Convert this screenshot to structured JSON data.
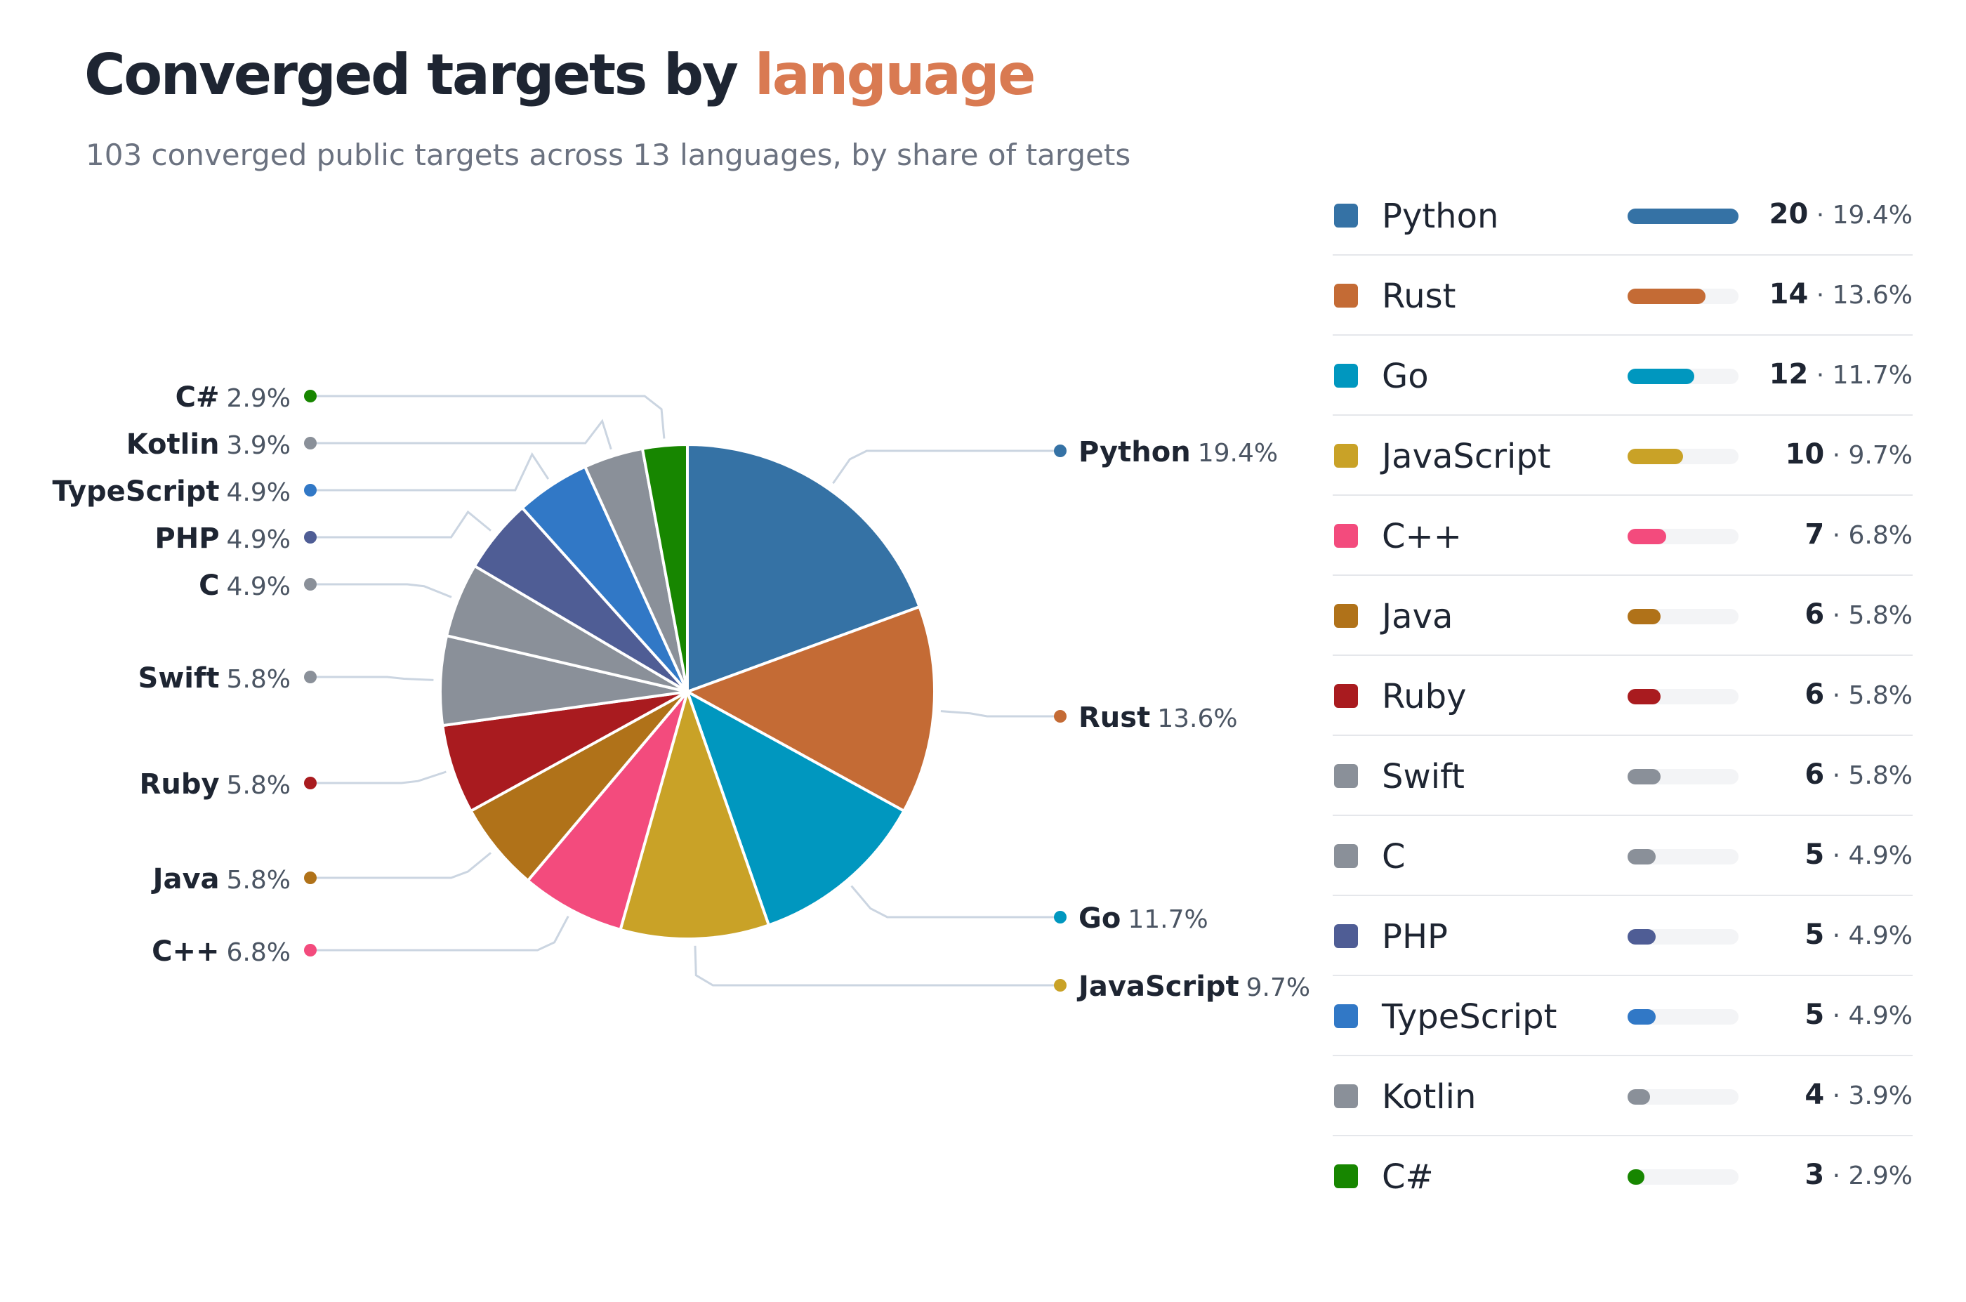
{
  "title": {
    "main": "Converged targets by",
    "accent": "language"
  },
  "subtitle": "103 converged public targets across 13 languages, by share of targets",
  "chart_data": {
    "type": "pie",
    "total": 103,
    "slices": [
      {
        "name": "Python",
        "value": 20,
        "percent": "19.4%",
        "color": "#3572a5"
      },
      {
        "name": "Rust",
        "value": 14,
        "percent": "13.6%",
        "color": "#c46b35"
      },
      {
        "name": "Go",
        "value": 12,
        "percent": "11.7%",
        "color": "#0097bf"
      },
      {
        "name": "JavaScript",
        "value": 10,
        "percent": "9.7%",
        "color": "#c9a227"
      },
      {
        "name": "C++",
        "value": 7,
        "percent": "6.8%",
        "color": "#f34b7d"
      },
      {
        "name": "Java",
        "value": 6,
        "percent": "5.8%",
        "color": "#b07219"
      },
      {
        "name": "Ruby",
        "value": 6,
        "percent": "5.8%",
        "color": "#a91b1f"
      },
      {
        "name": "Swift",
        "value": 6,
        "percent": "5.8%",
        "color": "#8a9099"
      },
      {
        "name": "C",
        "value": 5,
        "percent": "4.9%",
        "color": "#8a9099"
      },
      {
        "name": "PHP",
        "value": 5,
        "percent": "4.9%",
        "color": "#4f5d95"
      },
      {
        "name": "TypeScript",
        "value": 5,
        "percent": "4.9%",
        "color": "#3178c6"
      },
      {
        "name": "Kotlin",
        "value": 4,
        "percent": "3.9%",
        "color": "#8a9099"
      },
      {
        "name": "C#",
        "value": 3,
        "percent": "2.9%",
        "color": "#178600"
      }
    ]
  },
  "legend": {
    "separator": "·",
    "items": [
      {
        "name": "Python",
        "count": "20",
        "percent": "19.4%"
      },
      {
        "name": "Rust",
        "count": "14",
        "percent": "13.6%"
      },
      {
        "name": "Go",
        "count": "12",
        "percent": "11.7%"
      },
      {
        "name": "JavaScript",
        "count": "10",
        "percent": "9.7%"
      },
      {
        "name": "C++",
        "count": "7",
        "percent": "6.8%"
      },
      {
        "name": "Java",
        "count": "6",
        "percent": "5.8%"
      },
      {
        "name": "Ruby",
        "count": "6",
        "percent": "5.8%"
      },
      {
        "name": "Swift",
        "count": "6",
        "percent": "5.8%"
      },
      {
        "name": "C",
        "count": "5",
        "percent": "4.9%"
      },
      {
        "name": "PHP",
        "count": "5",
        "percent": "4.9%"
      },
      {
        "name": "TypeScript",
        "count": "5",
        "percent": "4.9%"
      },
      {
        "name": "Kotlin",
        "count": "4",
        "percent": "3.9%"
      },
      {
        "name": "C#",
        "count": "3",
        "percent": "2.9%"
      }
    ]
  }
}
